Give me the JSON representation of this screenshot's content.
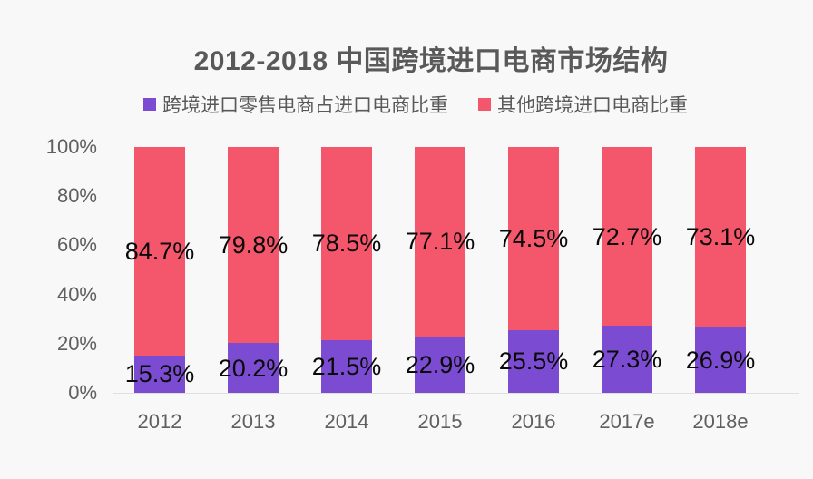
{
  "title": "2012-2018 中国跨境进口电商市场结构",
  "colors": {
    "background": "#f8f8f8",
    "axis_line": "#dfdfdf",
    "title_text": "#595959",
    "tick_text": "#5f5f5f",
    "data_label_text": "#0a0a0a"
  },
  "chart_data": {
    "type": "bar",
    "stacked": true,
    "percent_stacked": true,
    "title": "2012-2018 中国跨境进口电商市场结构",
    "categories": [
      "2012",
      "2013",
      "2014",
      "2015",
      "2016",
      "2017e",
      "2018e"
    ],
    "series": [
      {
        "name": "跨境进口零售电商占进口电商比重",
        "color": "#7b4cd1",
        "values": [
          15.3,
          20.2,
          21.5,
          22.9,
          25.5,
          27.3,
          26.9
        ]
      },
      {
        "name": "其他跨境进口电商比重",
        "color": "#f4566c",
        "values": [
          84.7,
          79.8,
          78.5,
          77.1,
          74.5,
          72.7,
          73.1
        ]
      }
    ],
    "xlabel": "",
    "ylabel": "",
    "ylim": [
      0,
      100
    ],
    "yticks": [
      "0%",
      "20%",
      "40%",
      "60%",
      "80%",
      "100%"
    ],
    "value_suffix": "%",
    "grid": false,
    "legend_position": "top",
    "data_labels": "inside-center"
  }
}
